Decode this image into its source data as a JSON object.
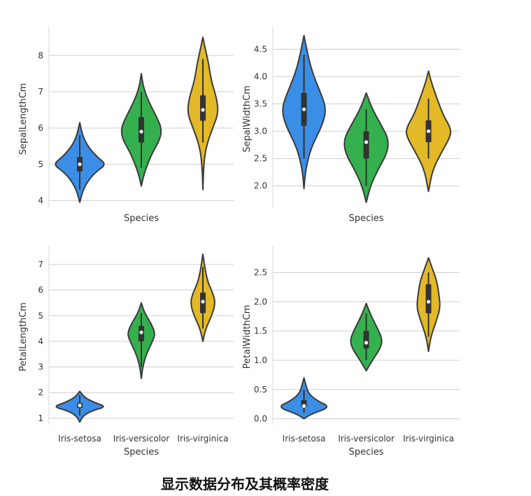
{
  "caption": "显示数据分布及其概率密度",
  "colors": {
    "Iris-setosa": "#3a8ee6",
    "Iris-versicolor": "#35b04e",
    "Iris-virginica": "#e3b928",
    "outline": "#3a3a3a",
    "grid": "#cfcfcf",
    "box": "#333333",
    "median": "#ffffff"
  },
  "chart_data": [
    {
      "type": "violin",
      "ylabel": "SepalLengthCm",
      "xlabel": "Species",
      "show_category_labels": false,
      "ylim": [
        3.8,
        8.7
      ],
      "yticks": [
        4,
        5,
        6,
        7,
        8
      ],
      "ytick_labels": [
        "4",
        "5",
        "6",
        "7",
        "8"
      ],
      "categories": [
        "Iris-setosa",
        "Iris-versicolor",
        "Iris-virginica"
      ],
      "violins": [
        {
          "category": "Iris-setosa",
          "min": 3.95,
          "max": 6.15,
          "q1": 4.8,
          "median": 5.0,
          "q3": 5.2,
          "wlo": 4.3,
          "whi": 5.8,
          "density": [
            [
              3.95,
              0.0
            ],
            [
              4.3,
              0.12
            ],
            [
              4.6,
              0.35
            ],
            [
              4.8,
              0.6
            ],
            [
              5.0,
              0.95
            ],
            [
              5.2,
              0.62
            ],
            [
              5.5,
              0.28
            ],
            [
              5.8,
              0.1
            ],
            [
              6.15,
              0.0
            ]
          ]
        },
        {
          "category": "Iris-versicolor",
          "min": 4.4,
          "max": 7.5,
          "q1": 5.6,
          "median": 5.9,
          "q3": 6.3,
          "wlo": 4.9,
          "whi": 7.0,
          "density": [
            [
              4.4,
              0.0
            ],
            [
              4.8,
              0.12
            ],
            [
              5.3,
              0.38
            ],
            [
              5.7,
              0.68
            ],
            [
              6.0,
              0.72
            ],
            [
              6.3,
              0.55
            ],
            [
              6.7,
              0.28
            ],
            [
              7.1,
              0.08
            ],
            [
              7.5,
              0.0
            ]
          ]
        },
        {
          "category": "Iris-virginica",
          "min": 4.3,
          "max": 8.5,
          "q1": 6.2,
          "median": 6.5,
          "q3": 6.9,
          "wlo": 5.6,
          "whi": 7.9,
          "density": [
            [
              4.3,
              0.0
            ],
            [
              5.0,
              0.03
            ],
            [
              5.5,
              0.12
            ],
            [
              6.0,
              0.35
            ],
            [
              6.4,
              0.55
            ],
            [
              6.8,
              0.5
            ],
            [
              7.3,
              0.3
            ],
            [
              7.8,
              0.2
            ],
            [
              8.2,
              0.08
            ],
            [
              8.5,
              0.0
            ]
          ]
        }
      ]
    },
    {
      "type": "violin",
      "ylabel": "SepalWidthCm",
      "xlabel": "Species",
      "show_category_labels": false,
      "ylim": [
        1.6,
        4.85
      ],
      "yticks": [
        2.0,
        2.5,
        3.0,
        3.5,
        4.0,
        4.5
      ],
      "ytick_labels": [
        "2.0",
        "2.5",
        "3.0",
        "3.5",
        "4.0",
        "4.5"
      ],
      "categories": [
        "Iris-setosa",
        "Iris-versicolor",
        "Iris-virginica"
      ],
      "violins": [
        {
          "category": "Iris-setosa",
          "min": 1.95,
          "max": 4.75,
          "q1": 3.1,
          "median": 3.4,
          "q3": 3.7,
          "wlo": 2.5,
          "whi": 4.4,
          "density": [
            [
              1.95,
              0.0
            ],
            [
              2.3,
              0.06
            ],
            [
              2.7,
              0.25
            ],
            [
              3.1,
              0.65
            ],
            [
              3.4,
              0.8
            ],
            [
              3.7,
              0.6
            ],
            [
              4.0,
              0.35
            ],
            [
              4.3,
              0.18
            ],
            [
              4.75,
              0.0
            ]
          ]
        },
        {
          "category": "Iris-versicolor",
          "min": 1.7,
          "max": 3.7,
          "q1": 2.5,
          "median": 2.8,
          "q3": 3.0,
          "wlo": 2.0,
          "whi": 3.4,
          "density": [
            [
              1.7,
              0.0
            ],
            [
              2.0,
              0.15
            ],
            [
              2.3,
              0.42
            ],
            [
              2.6,
              0.75
            ],
            [
              2.85,
              0.8
            ],
            [
              3.1,
              0.55
            ],
            [
              3.4,
              0.22
            ],
            [
              3.7,
              0.0
            ]
          ]
        },
        {
          "category": "Iris-virginica",
          "min": 1.9,
          "max": 4.1,
          "q1": 2.8,
          "median": 3.0,
          "q3": 3.2,
          "wlo": 2.5,
          "whi": 3.6,
          "density": [
            [
              1.9,
              0.0
            ],
            [
              2.3,
              0.15
            ],
            [
              2.6,
              0.45
            ],
            [
              2.9,
              0.78
            ],
            [
              3.05,
              0.8
            ],
            [
              3.3,
              0.52
            ],
            [
              3.6,
              0.3
            ],
            [
              3.9,
              0.1
            ],
            [
              4.1,
              0.0
            ]
          ]
        }
      ]
    },
    {
      "type": "violin",
      "ylabel": "PetalLengthCm",
      "xlabel": "Species",
      "show_category_labels": true,
      "ylim": [
        0.75,
        7.6
      ],
      "yticks": [
        1,
        2,
        3,
        4,
        5,
        6,
        7
      ],
      "ytick_labels": [
        "1",
        "2",
        "3",
        "4",
        "5",
        "6",
        "7"
      ],
      "categories": [
        "Iris-setosa",
        "Iris-versicolor",
        "Iris-virginica"
      ],
      "violins": [
        {
          "category": "Iris-setosa",
          "min": 0.85,
          "max": 2.05,
          "q1": 1.4,
          "median": 1.5,
          "q3": 1.6,
          "wlo": 1.1,
          "whi": 1.9,
          "density": [
            [
              0.85,
              0.0
            ],
            [
              1.1,
              0.12
            ],
            [
              1.3,
              0.45
            ],
            [
              1.45,
              0.95
            ],
            [
              1.6,
              0.55
            ],
            [
              1.8,
              0.18
            ],
            [
              2.05,
              0.0
            ]
          ]
        },
        {
          "category": "Iris-versicolor",
          "min": 2.55,
          "max": 5.5,
          "q1": 4.0,
          "median": 4.35,
          "q3": 4.6,
          "wlo": 3.0,
          "whi": 5.1,
          "density": [
            [
              2.55,
              0.0
            ],
            [
              3.0,
              0.05
            ],
            [
              3.5,
              0.18
            ],
            [
              4.0,
              0.4
            ],
            [
              4.3,
              0.5
            ],
            [
              4.7,
              0.35
            ],
            [
              5.1,
              0.12
            ],
            [
              5.5,
              0.0
            ]
          ]
        },
        {
          "category": "Iris-virginica",
          "min": 4.0,
          "max": 7.4,
          "q1": 5.1,
          "median": 5.55,
          "q3": 5.9,
          "wlo": 4.5,
          "whi": 6.9,
          "density": [
            [
              4.0,
              0.0
            ],
            [
              4.5,
              0.1
            ],
            [
              5.0,
              0.32
            ],
            [
              5.5,
              0.45
            ],
            [
              5.9,
              0.35
            ],
            [
              6.3,
              0.18
            ],
            [
              6.8,
              0.08
            ],
            [
              7.4,
              0.0
            ]
          ]
        }
      ]
    },
    {
      "type": "violin",
      "ylabel": "PetalWidthCm",
      "xlabel": "Species",
      "show_category_labels": true,
      "ylim": [
        -0.1,
        2.9
      ],
      "yticks": [
        0.0,
        0.5,
        1.0,
        1.5,
        2.0,
        2.5
      ],
      "ytick_labels": [
        "0.0",
        "0.5",
        "1.0",
        "1.5",
        "2.0",
        "2.5"
      ],
      "categories": [
        "Iris-setosa",
        "Iris-versicolor",
        "Iris-virginica"
      ],
      "violins": [
        {
          "category": "Iris-setosa",
          "min": 0.0,
          "max": 0.7,
          "q1": 0.2,
          "median": 0.22,
          "q3": 0.32,
          "wlo": 0.1,
          "whi": 0.5,
          "density": [
            [
              0.0,
              0.0
            ],
            [
              0.08,
              0.25
            ],
            [
              0.2,
              0.95
            ],
            [
              0.3,
              0.5
            ],
            [
              0.42,
              0.18
            ],
            [
              0.55,
              0.08
            ],
            [
              0.7,
              0.0
            ]
          ]
        },
        {
          "category": "Iris-versicolor",
          "min": 0.82,
          "max": 1.97,
          "q1": 1.2,
          "median": 1.3,
          "q3": 1.5,
          "wlo": 1.0,
          "whi": 1.8,
          "density": [
            [
              0.82,
              0.0
            ],
            [
              1.0,
              0.22
            ],
            [
              1.2,
              0.5
            ],
            [
              1.35,
              0.58
            ],
            [
              1.55,
              0.4
            ],
            [
              1.75,
              0.18
            ],
            [
              1.97,
              0.0
            ]
          ]
        },
        {
          "category": "Iris-virginica",
          "min": 1.15,
          "max": 2.75,
          "q1": 1.8,
          "median": 2.0,
          "q3": 2.3,
          "wlo": 1.4,
          "whi": 2.5,
          "density": [
            [
              1.15,
              0.0
            ],
            [
              1.4,
              0.08
            ],
            [
              1.7,
              0.3
            ],
            [
              1.9,
              0.42
            ],
            [
              2.1,
              0.38
            ],
            [
              2.35,
              0.3
            ],
            [
              2.55,
              0.15
            ],
            [
              2.75,
              0.0
            ]
          ]
        }
      ]
    }
  ]
}
